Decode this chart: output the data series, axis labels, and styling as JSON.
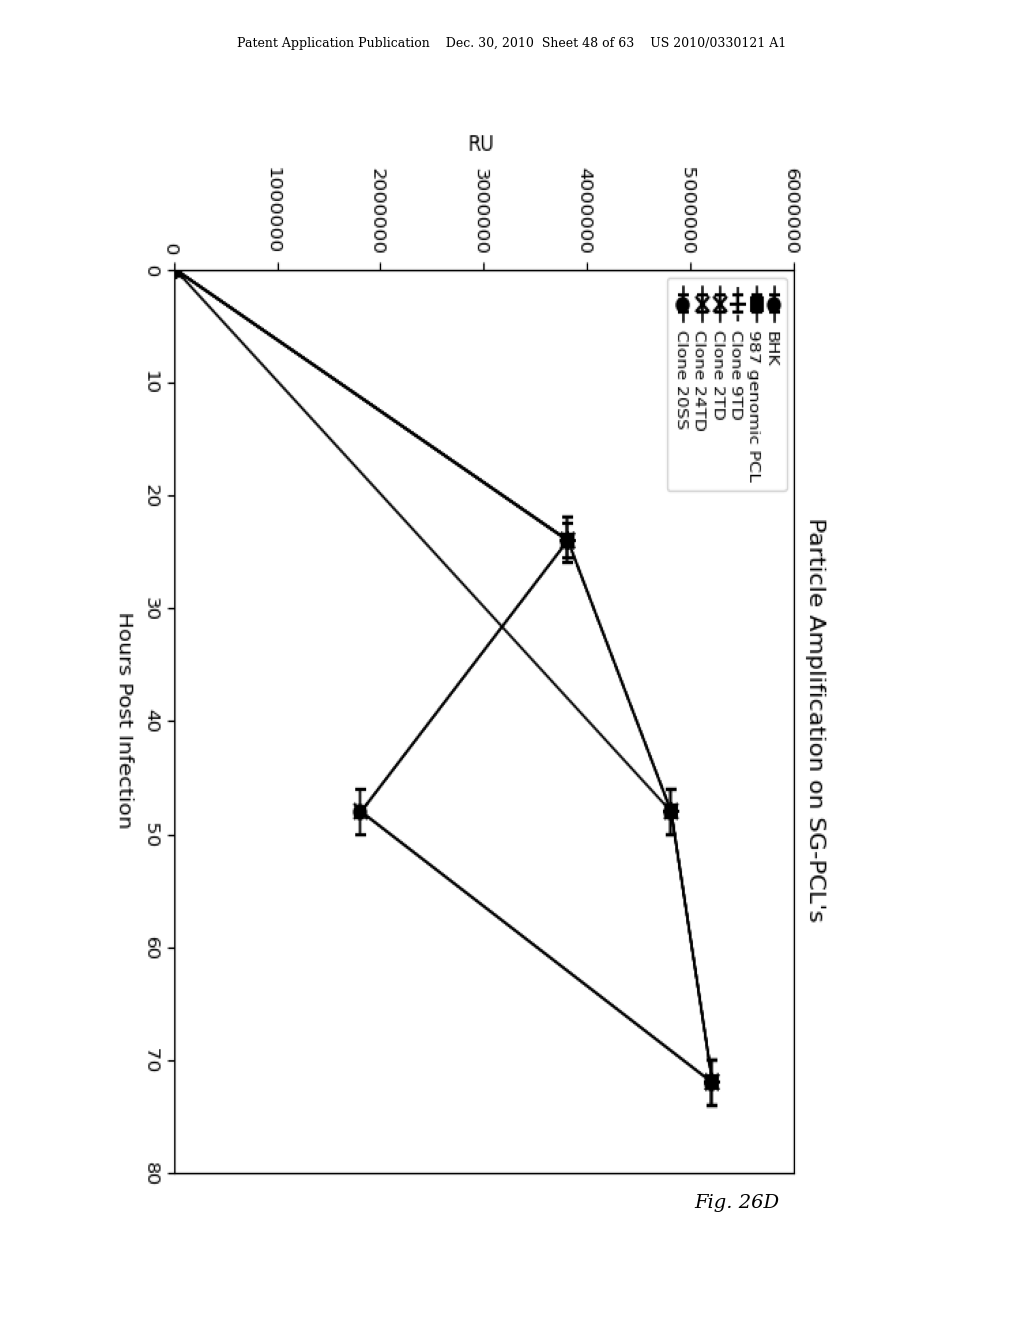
{
  "title": "Particle Amplification on SG-PCL's",
  "xlabel_rotated": "Hours Post Infection",
  "ylabel_rotated": "RU",
  "xlim": [
    0,
    80
  ],
  "ylim": [
    0,
    6000000
  ],
  "yticks": [
    0,
    1000000,
    2000000,
    3000000,
    4000000,
    5000000,
    6000000
  ],
  "xticks": [
    0,
    10,
    20,
    30,
    40,
    50,
    60,
    70,
    80
  ],
  "series": [
    {
      "label": "BHK",
      "marker": "o",
      "markersize": 6,
      "linestyle": "-",
      "x": [
        0,
        48,
        72
      ],
      "y": [
        0,
        4800000,
        5200000
      ],
      "xerr": [
        0,
        2,
        2
      ]
    },
    {
      "label": "987 genomic PCL",
      "marker": "s",
      "markersize": 6,
      "linestyle": "-",
      "x": [
        0,
        24,
        48,
        72
      ],
      "y": [
        0,
        3800000,
        4800000,
        5200000
      ],
      "xerr": [
        0,
        2,
        2,
        2
      ]
    },
    {
      "label": "Clone 9TD",
      "marker": "+",
      "markersize": 8,
      "linestyle": "--",
      "x": [
        0,
        24,
        48,
        72
      ],
      "y": [
        0,
        3800000,
        4800000,
        5200000
      ],
      "xerr": [
        0,
        2,
        2,
        2
      ]
    },
    {
      "label": "Clone 2TD",
      "marker": "x",
      "markersize": 7,
      "linestyle": "-",
      "x": [
        0,
        24,
        48,
        72
      ],
      "y": [
        0,
        3800000,
        4800000,
        5200000
      ],
      "xerr": [
        0,
        1.5,
        2,
        2
      ]
    },
    {
      "label": "Clone 24TD",
      "marker": "x",
      "markersize": 7,
      "linestyle": "-",
      "x": [
        0,
        24,
        48,
        72
      ],
      "y": [
        0,
        3800000,
        1800000,
        5200000
      ],
      "xerr": [
        0,
        1.5,
        2,
        2
      ]
    },
    {
      "label": "Clone 20SS",
      "marker": "o",
      "markersize": 6,
      "linestyle": "-",
      "x": [
        0,
        24,
        48,
        72
      ],
      "y": [
        0,
        3800000,
        1800000,
        5200000
      ],
      "xerr": [
        0,
        2,
        2,
        2
      ]
    }
  ],
  "figure_title": "Fig. 26D",
  "background_color": "#ffffff",
  "header_text": "Patent Application Publication    Dec. 30, 2010  Sheet 48 of 63    US 2010/0330121 A1",
  "chart_title": "Particle Amplification on SG-PCL's"
}
